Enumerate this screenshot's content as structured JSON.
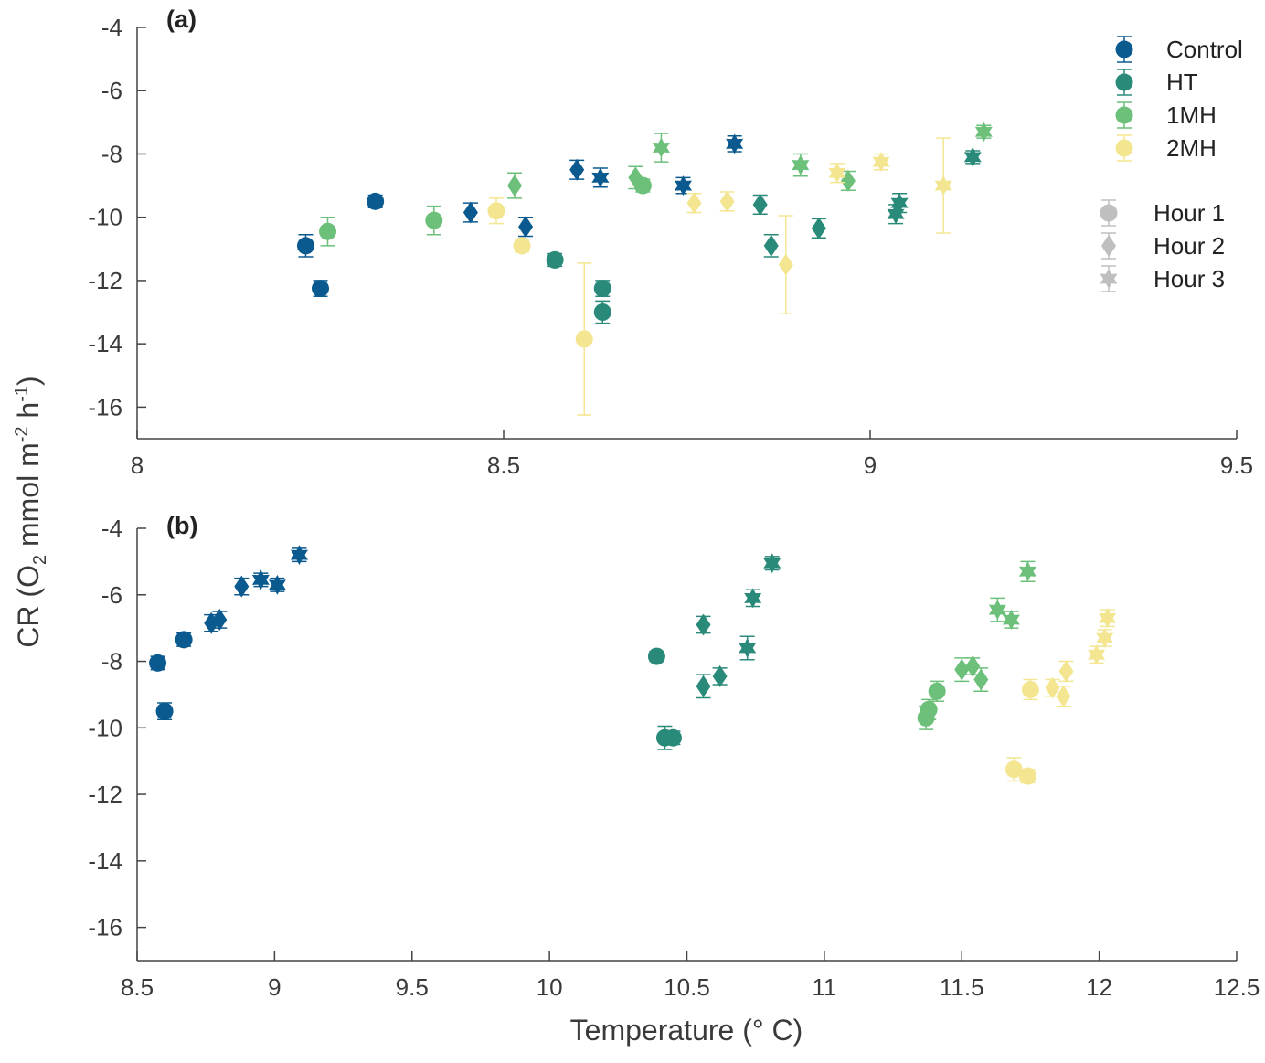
{
  "axes": {
    "ylabel": {
      "main": "CR (O",
      "sub1": "2",
      "mid": " mmol m",
      "sup1": "-2",
      "mid2": " h",
      "sup2": "-1",
      "end": ")"
    },
    "xlabel": "Temperature (° C)"
  },
  "legend": {
    "treatments": [
      {
        "name": "Control",
        "color": "#0b5a8f"
      },
      {
        "name": "HT",
        "color": "#2a8a7a"
      },
      {
        "name": "1MH",
        "color": "#6cc07a"
      },
      {
        "name": "2MH",
        "color": "#f4e690"
      }
    ],
    "hours": [
      {
        "name": "Hour 1",
        "marker": "circle",
        "color": "#bfbfbf"
      },
      {
        "name": "Hour 2",
        "marker": "diamond",
        "color": "#bfbfbf"
      },
      {
        "name": "Hour 3",
        "marker": "hexagram",
        "color": "#bfbfbf"
      }
    ]
  },
  "chart_data": [
    {
      "type": "scatter",
      "panel": "(a)",
      "xlim": [
        8,
        9.5
      ],
      "ylim": [
        -17,
        -4
      ],
      "xticks": [
        "8",
        "8.5",
        "9",
        "9.5"
      ],
      "yticks": [
        "-4",
        "-6",
        "-8",
        "-10",
        "-12",
        "-14",
        "-16"
      ],
      "series": [
        {
          "name": "Control",
          "points": [
            {
              "x": 8.23,
              "y": -10.9,
              "err": 0.35,
              "m": "circle"
            },
            {
              "x": 8.25,
              "y": -12.25,
              "err": 0.25,
              "m": "circle"
            },
            {
              "x": 8.325,
              "y": -9.5,
              "err": 0.2,
              "m": "circle"
            },
            {
              "x": 8.455,
              "y": -9.85,
              "err": 0.3,
              "m": "diamond"
            },
            {
              "x": 8.53,
              "y": -10.3,
              "err": 0.3,
              "m": "diamond"
            },
            {
              "x": 8.6,
              "y": -8.5,
              "err": 0.3,
              "m": "diamond"
            },
            {
              "x": 8.632,
              "y": -8.75,
              "err": 0.3,
              "m": "hexagram"
            },
            {
              "x": 8.745,
              "y": -9.0,
              "err": 0.25,
              "m": "hexagram"
            },
            {
              "x": 8.815,
              "y": -7.68,
              "err": 0.25,
              "m": "hexagram"
            }
          ]
        },
        {
          "name": "HT",
          "points": [
            {
              "x": 8.57,
              "y": -11.35,
              "err": 0.2,
              "m": "circle"
            },
            {
              "x": 8.635,
              "y": -12.25,
              "err": 0.25,
              "m": "circle"
            },
            {
              "x": 8.635,
              "y": -13.0,
              "err": 0.35,
              "m": "circle"
            },
            {
              "x": 8.85,
              "y": -9.6,
              "err": 0.3,
              "m": "diamond"
            },
            {
              "x": 8.865,
              "y": -10.9,
              "err": 0.35,
              "m": "diamond"
            },
            {
              "x": 8.93,
              "y": -10.35,
              "err": 0.3,
              "m": "diamond"
            },
            {
              "x": 9.035,
              "y": -9.9,
              "err": 0.3,
              "m": "hexagram"
            },
            {
              "x": 9.04,
              "y": -9.55,
              "err": 0.3,
              "m": "hexagram"
            },
            {
              "x": 9.14,
              "y": -8.1,
              "err": 0.2,
              "m": "hexagram"
            }
          ]
        },
        {
          "name": "1MH",
          "points": [
            {
              "x": 8.26,
              "y": -10.45,
              "err": 0.45,
              "m": "circle"
            },
            {
              "x": 8.405,
              "y": -10.1,
              "err": 0.45,
              "m": "circle"
            },
            {
              "x": 8.69,
              "y": -9.0,
              "err": 0.2,
              "m": "circle"
            },
            {
              "x": 8.515,
              "y": -9.0,
              "err": 0.4,
              "m": "diamond"
            },
            {
              "x": 8.68,
              "y": -8.75,
              "err": 0.35,
              "m": "diamond"
            },
            {
              "x": 8.97,
              "y": -8.85,
              "err": 0.3,
              "m": "diamond"
            },
            {
              "x": 8.715,
              "y": -7.8,
              "err": 0.45,
              "m": "hexagram"
            },
            {
              "x": 8.905,
              "y": -8.35,
              "err": 0.35,
              "m": "hexagram"
            },
            {
              "x": 9.155,
              "y": -7.3,
              "err": 0.2,
              "m": "hexagram"
            }
          ]
        },
        {
          "name": "2MH",
          "points": [
            {
              "x": 8.49,
              "y": -9.8,
              "err": 0.4,
              "m": "circle"
            },
            {
              "x": 8.525,
              "y": -10.9,
              "err": 0.2,
              "m": "circle"
            },
            {
              "x": 8.61,
              "y": -13.85,
              "err": 2.4,
              "m": "circle"
            },
            {
              "x": 8.76,
              "y": -9.55,
              "err": 0.3,
              "m": "diamond"
            },
            {
              "x": 8.805,
              "y": -9.5,
              "err": 0.3,
              "m": "diamond"
            },
            {
              "x": 8.885,
              "y": -11.5,
              "err": 1.55,
              "m": "diamond"
            },
            {
              "x": 8.955,
              "y": -8.6,
              "err": 0.3,
              "m": "hexagram"
            },
            {
              "x": 9.015,
              "y": -8.25,
              "err": 0.25,
              "m": "hexagram"
            },
            {
              "x": 9.1,
              "y": -9.0,
              "err": 1.5,
              "m": "hexagram"
            }
          ]
        }
      ]
    },
    {
      "type": "scatter",
      "panel": "(b)",
      "xlim": [
        8.5,
        12.5
      ],
      "ylim": [
        -17,
        -4
      ],
      "xticks": [
        "8.5",
        "9",
        "9.5",
        "10",
        "10.5",
        "11",
        "11.5",
        "12",
        "12.5"
      ],
      "yticks": [
        "-4",
        "-6",
        "-8",
        "-10",
        "-12",
        "-14",
        "-16"
      ],
      "series": [
        {
          "name": "Control",
          "points": [
            {
              "x": 8.575,
              "y": -8.05,
              "err": 0.2,
              "m": "circle"
            },
            {
              "x": 8.6,
              "y": -9.5,
              "err": 0.25,
              "m": "circle"
            },
            {
              "x": 8.67,
              "y": -7.35,
              "err": 0.2,
              "m": "circle"
            },
            {
              "x": 8.77,
              "y": -6.85,
              "err": 0.25,
              "m": "diamond"
            },
            {
              "x": 8.8,
              "y": -6.75,
              "err": 0.25,
              "m": "diamond"
            },
            {
              "x": 8.88,
              "y": -5.75,
              "err": 0.25,
              "m": "diamond"
            },
            {
              "x": 8.95,
              "y": -5.55,
              "err": 0.2,
              "m": "hexagram"
            },
            {
              "x": 9.01,
              "y": -5.7,
              "err": 0.2,
              "m": "hexagram"
            },
            {
              "x": 9.09,
              "y": -4.8,
              "err": 0.2,
              "m": "hexagram"
            }
          ]
        },
        {
          "name": "HT",
          "points": [
            {
              "x": 10.39,
              "y": -7.85,
              "err": 0.15,
              "m": "circle"
            },
            {
              "x": 10.42,
              "y": -10.3,
              "err": 0.35,
              "m": "circle"
            },
            {
              "x": 10.45,
              "y": -10.3,
              "err": 0.2,
              "m": "circle"
            },
            {
              "x": 10.56,
              "y": -8.75,
              "err": 0.35,
              "m": "diamond"
            },
            {
              "x": 10.56,
              "y": -6.9,
              "err": 0.25,
              "m": "diamond"
            },
            {
              "x": 10.62,
              "y": -8.45,
              "err": 0.25,
              "m": "diamond"
            },
            {
              "x": 10.72,
              "y": -7.6,
              "err": 0.35,
              "m": "hexagram"
            },
            {
              "x": 10.74,
              "y": -6.1,
              "err": 0.25,
              "m": "hexagram"
            },
            {
              "x": 10.81,
              "y": -5.05,
              "err": 0.2,
              "m": "hexagram"
            }
          ]
        },
        {
          "name": "1MH",
          "points": [
            {
              "x": 11.37,
              "y": -9.7,
              "err": 0.35,
              "m": "circle"
            },
            {
              "x": 11.38,
              "y": -9.45,
              "err": 0.3,
              "m": "circle"
            },
            {
              "x": 11.41,
              "y": -8.9,
              "err": 0.3,
              "m": "circle"
            },
            {
              "x": 11.5,
              "y": -8.25,
              "err": 0.35,
              "m": "diamond"
            },
            {
              "x": 11.54,
              "y": -8.15,
              "err": 0.25,
              "m": "diamond"
            },
            {
              "x": 11.57,
              "y": -8.55,
              "err": 0.35,
              "m": "diamond"
            },
            {
              "x": 11.63,
              "y": -6.45,
              "err": 0.35,
              "m": "hexagram"
            },
            {
              "x": 11.68,
              "y": -6.75,
              "err": 0.25,
              "m": "hexagram"
            },
            {
              "x": 11.74,
              "y": -5.3,
              "err": 0.3,
              "m": "hexagram"
            }
          ]
        },
        {
          "name": "2MH",
          "points": [
            {
              "x": 11.69,
              "y": -11.25,
              "err": 0.35,
              "m": "circle"
            },
            {
              "x": 11.74,
              "y": -11.45,
              "err": 0.2,
              "m": "circle"
            },
            {
              "x": 11.75,
              "y": -8.85,
              "err": 0.3,
              "m": "circle"
            },
            {
              "x": 11.83,
              "y": -8.8,
              "err": 0.25,
              "m": "diamond"
            },
            {
              "x": 11.87,
              "y": -9.05,
              "err": 0.3,
              "m": "diamond"
            },
            {
              "x": 11.88,
              "y": -8.3,
              "err": 0.3,
              "m": "diamond"
            },
            {
              "x": 11.99,
              "y": -7.8,
              "err": 0.25,
              "m": "hexagram"
            },
            {
              "x": 12.02,
              "y": -7.3,
              "err": 0.25,
              "m": "hexagram"
            },
            {
              "x": 12.03,
              "y": -6.7,
              "err": 0.25,
              "m": "hexagram"
            }
          ]
        }
      ]
    }
  ]
}
